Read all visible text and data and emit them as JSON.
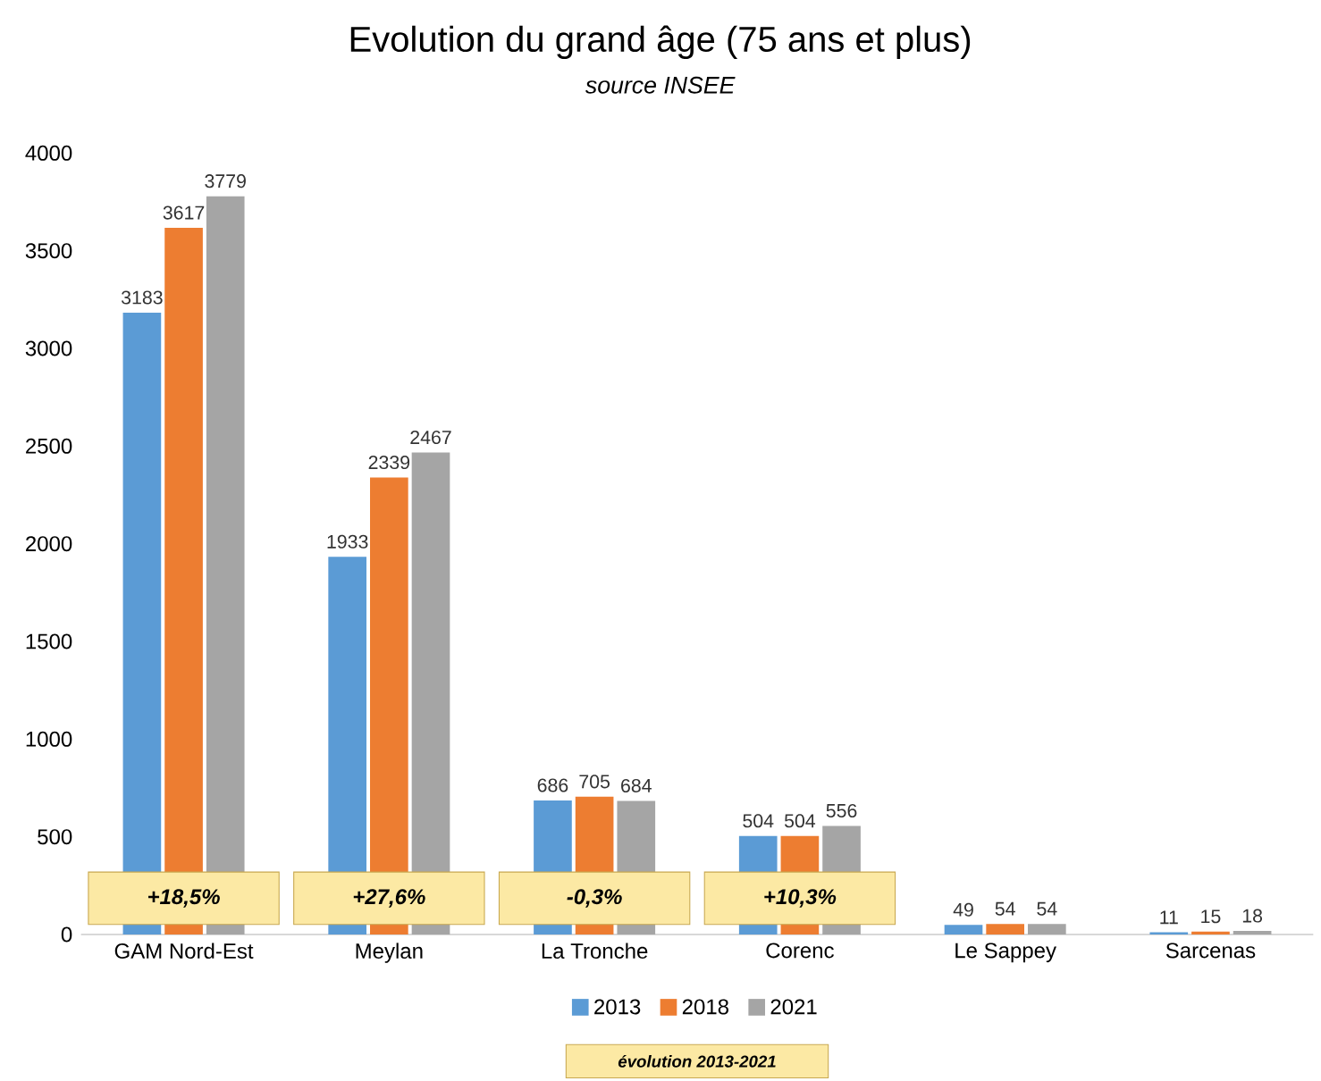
{
  "chart_data": {
    "type": "bar",
    "title": "Evolution du grand âge (75 ans et plus)",
    "subtitle": "source INSEE",
    "categories": [
      "GAM Nord-Est",
      "Meylan",
      "La Tronche",
      "Corenc",
      "Le Sappey",
      "Sarcenas"
    ],
    "series": [
      {
        "name": "2013",
        "color": "#5b9bd5",
        "values": [
          3183,
          1933,
          686,
          504,
          49,
          11
        ]
      },
      {
        "name": "2018",
        "color": "#ed7d31",
        "values": [
          3617,
          2339,
          705,
          504,
          54,
          15
        ]
      },
      {
        "name": "2021",
        "color": "#a5a5a5",
        "values": [
          3779,
          2467,
          684,
          556,
          54,
          18
        ]
      }
    ],
    "ylim": [
      0,
      4000
    ],
    "yticks": [
      0,
      500,
      1000,
      1500,
      2000,
      2500,
      3000,
      3500,
      4000
    ],
    "data_labels": true,
    "legend": "bottom",
    "annotations": [
      "*+18,5%*",
      "*+27,6%*",
      "*-0,3%*",
      "*+10,3%*",
      "*évolution 2013-2021*"
    ]
  }
}
